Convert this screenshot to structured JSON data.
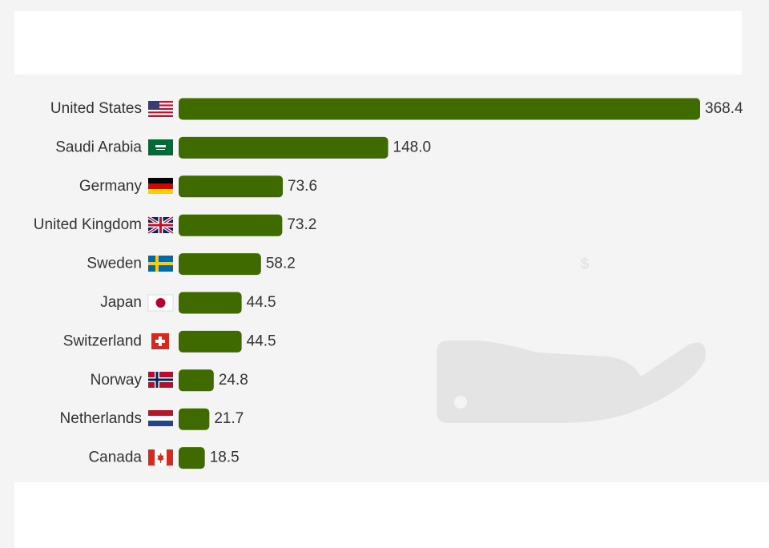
{
  "chart_data": {
    "type": "bar",
    "categories": [
      "United States",
      "Saudi Arabia",
      "Germany",
      "United Kingdom",
      "Sweden",
      "Japan",
      "Switzerland",
      "Norway",
      "Netherlands",
      "Canada"
    ],
    "values": [
      368.4,
      148.0,
      73.6,
      73.2,
      58.2,
      44.5,
      44.5,
      24.8,
      21.7,
      18.5
    ],
    "value_labels": [
      "368.4",
      "148.0",
      "73.6",
      "73.2",
      "58.2",
      "44.5",
      "44.5",
      "24.8",
      "21.7",
      "18.5"
    ],
    "color": "#3f6a00"
  }
}
